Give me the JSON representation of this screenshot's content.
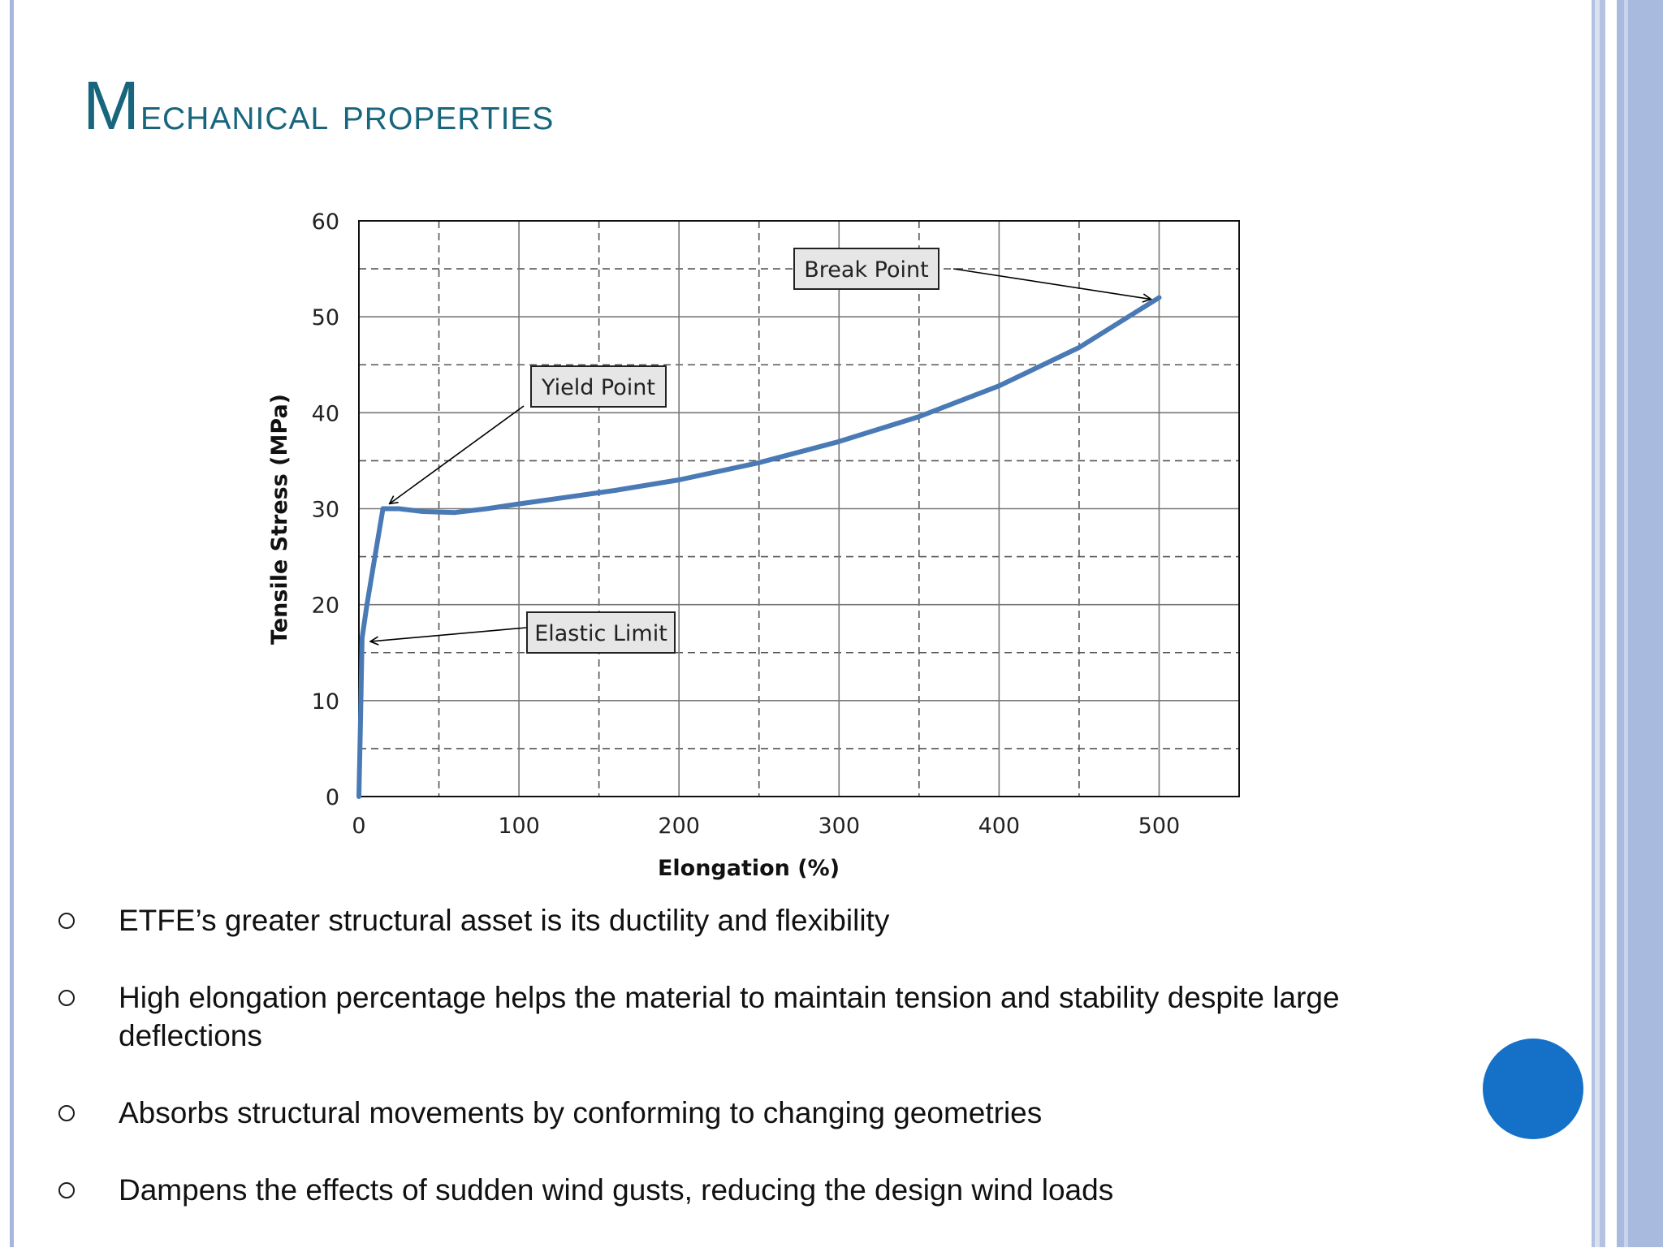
{
  "slide": {
    "title": "Mechanical properties",
    "bullets": [
      "ETFE’s greater structural asset is its ductility and flexibility",
      "High elongation percentage helps the material to maintain tension and stability despite large deflections",
      "Absorbs structural movements by conforming to changing geometries",
      "Dampens the effects of sudden wind gusts, reducing the design wind loads"
    ],
    "colors": {
      "title": "#17667e",
      "curve": "#4a7ab5",
      "accent_circle": "#1570c7",
      "side_rule": "#a6b7de"
    }
  },
  "chart_data": {
    "type": "line",
    "title": "",
    "xlabel": "Elongation (%)",
    "ylabel": "Tensile Stress (MPa)",
    "xlim": [
      0,
      550
    ],
    "ylim": [
      0,
      60
    ],
    "xticks": [
      0,
      100,
      200,
      300,
      400,
      500
    ],
    "yticks": [
      0,
      10,
      20,
      30,
      40,
      50,
      60
    ],
    "grid": {
      "major": true,
      "minor_dashed": true
    },
    "series": [
      {
        "x": [
          0,
          1,
          2,
          5,
          10,
          15,
          25,
          40,
          60,
          80,
          100,
          130,
          160,
          200,
          250,
          300,
          350,
          400,
          450,
          500
        ],
        "y": [
          0,
          8,
          16.5,
          20,
          25,
          30,
          30,
          29.7,
          29.6,
          30,
          30.5,
          31.2,
          31.9,
          33,
          34.8,
          37,
          39.6,
          42.8,
          46.8,
          52
        ]
      }
    ],
    "annotations": [
      {
        "text": "Break Point",
        "x": 500,
        "y": 52
      },
      {
        "text": "Yield Point",
        "x": 15,
        "y": 30
      },
      {
        "text": "Elastic Limit",
        "x": 2,
        "y": 16.5
      }
    ]
  }
}
